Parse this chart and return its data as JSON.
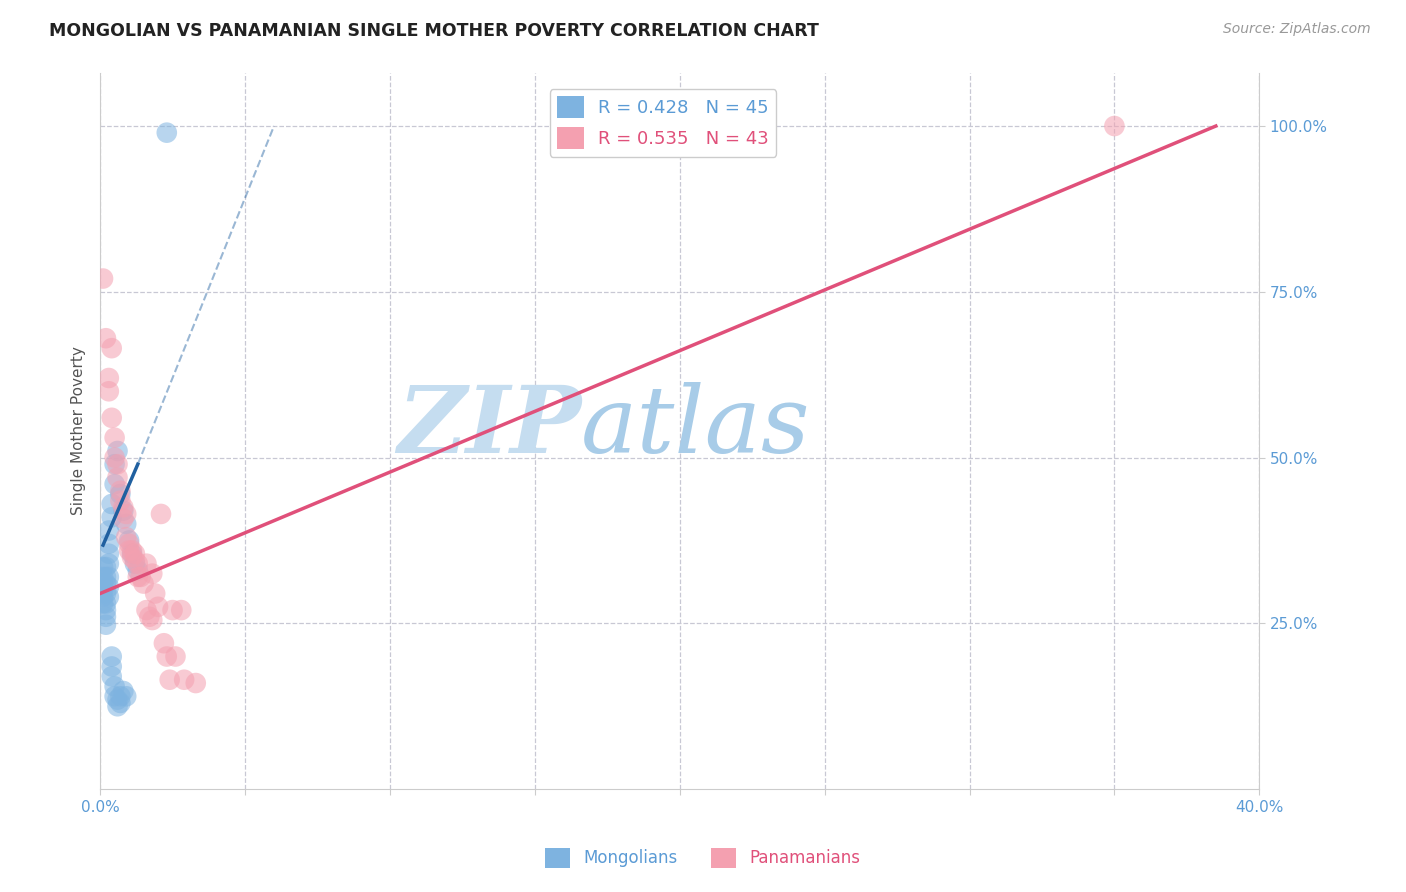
{
  "title": "MONGOLIAN VS PANAMANIAN SINGLE MOTHER POVERTY CORRELATION CHART",
  "source": "Source: ZipAtlas.com",
  "ylabel": "Single Mother Poverty",
  "xlim": [
    0.0,
    0.4
  ],
  "ylim": [
    0.0,
    1.08
  ],
  "xticks": [
    0.0,
    0.05,
    0.1,
    0.15,
    0.2,
    0.25,
    0.3,
    0.35,
    0.4
  ],
  "yticks": [
    0.25,
    0.5,
    0.75,
    1.0
  ],
  "axis_color": "#5b9bd5",
  "grid_color": "#c8c8d4",
  "background_color": "#ffffff",
  "watermark_zip": "ZIP",
  "watermark_atlas": "atlas",
  "watermark_color_zip": "#c5ddf0",
  "watermark_color_atlas": "#a8cce8",
  "legend_r_mongolian": "R = 0.428",
  "legend_n_mongolian": "N = 45",
  "legend_r_panamanian": "R = 0.535",
  "legend_n_panamanian": "N = 43",
  "mongolian_color": "#7eb3e0",
  "panamanian_color": "#f4a0b0",
  "mongolian_line_color": "#2060a0",
  "panamanian_line_color": "#e0507a",
  "mongolian_dots": [
    [
      0.001,
      0.335
    ],
    [
      0.001,
      0.32
    ],
    [
      0.001,
      0.31
    ],
    [
      0.001,
      0.3
    ],
    [
      0.001,
      0.29
    ],
    [
      0.001,
      0.28
    ],
    [
      0.002,
      0.335
    ],
    [
      0.002,
      0.32
    ],
    [
      0.002,
      0.31
    ],
    [
      0.002,
      0.295
    ],
    [
      0.002,
      0.28
    ],
    [
      0.002,
      0.27
    ],
    [
      0.002,
      0.26
    ],
    [
      0.002,
      0.248
    ],
    [
      0.003,
      0.39
    ],
    [
      0.003,
      0.37
    ],
    [
      0.003,
      0.355
    ],
    [
      0.003,
      0.34
    ],
    [
      0.003,
      0.32
    ],
    [
      0.003,
      0.305
    ],
    [
      0.003,
      0.29
    ],
    [
      0.004,
      0.43
    ],
    [
      0.004,
      0.41
    ],
    [
      0.004,
      0.2
    ],
    [
      0.004,
      0.185
    ],
    [
      0.004,
      0.17
    ],
    [
      0.005,
      0.49
    ],
    [
      0.005,
      0.46
    ],
    [
      0.005,
      0.155
    ],
    [
      0.005,
      0.14
    ],
    [
      0.006,
      0.51
    ],
    [
      0.006,
      0.135
    ],
    [
      0.006,
      0.125
    ],
    [
      0.007,
      0.445
    ],
    [
      0.007,
      0.14
    ],
    [
      0.007,
      0.13
    ],
    [
      0.008,
      0.42
    ],
    [
      0.008,
      0.148
    ],
    [
      0.009,
      0.4
    ],
    [
      0.009,
      0.14
    ],
    [
      0.01,
      0.375
    ],
    [
      0.011,
      0.355
    ],
    [
      0.012,
      0.34
    ],
    [
      0.013,
      0.33
    ],
    [
      0.023,
      0.99
    ]
  ],
  "panamanian_dots": [
    [
      0.001,
      0.77
    ],
    [
      0.002,
      0.68
    ],
    [
      0.003,
      0.62
    ],
    [
      0.003,
      0.6
    ],
    [
      0.004,
      0.665
    ],
    [
      0.004,
      0.56
    ],
    [
      0.005,
      0.53
    ],
    [
      0.005,
      0.5
    ],
    [
      0.006,
      0.49
    ],
    [
      0.006,
      0.47
    ],
    [
      0.007,
      0.45
    ],
    [
      0.007,
      0.435
    ],
    [
      0.008,
      0.425
    ],
    [
      0.008,
      0.408
    ],
    [
      0.009,
      0.415
    ],
    [
      0.009,
      0.38
    ],
    [
      0.01,
      0.37
    ],
    [
      0.01,
      0.36
    ],
    [
      0.011,
      0.36
    ],
    [
      0.011,
      0.35
    ],
    [
      0.012,
      0.355
    ],
    [
      0.012,
      0.345
    ],
    [
      0.013,
      0.34
    ],
    [
      0.013,
      0.32
    ],
    [
      0.014,
      0.32
    ],
    [
      0.015,
      0.31
    ],
    [
      0.016,
      0.34
    ],
    [
      0.016,
      0.27
    ],
    [
      0.017,
      0.26
    ],
    [
      0.018,
      0.255
    ],
    [
      0.019,
      0.295
    ],
    [
      0.02,
      0.275
    ],
    [
      0.021,
      0.415
    ],
    [
      0.022,
      0.22
    ],
    [
      0.023,
      0.2
    ],
    [
      0.024,
      0.165
    ],
    [
      0.025,
      0.27
    ],
    [
      0.026,
      0.2
    ],
    [
      0.028,
      0.27
    ],
    [
      0.029,
      0.165
    ],
    [
      0.033,
      0.16
    ],
    [
      0.35,
      1.0
    ],
    [
      0.018,
      0.325
    ]
  ],
  "mongolian_line_solid": {
    "x0": 0.001,
    "y0": 0.368,
    "x1": 0.013,
    "y1": 0.49
  },
  "mongolian_line_dashed": {
    "x0": 0.013,
    "y0": 0.49,
    "x1": 0.06,
    "y1": 1.0
  },
  "panamanian_line": {
    "x0": 0.0,
    "y0": 0.295,
    "x1": 0.385,
    "y1": 1.0
  }
}
